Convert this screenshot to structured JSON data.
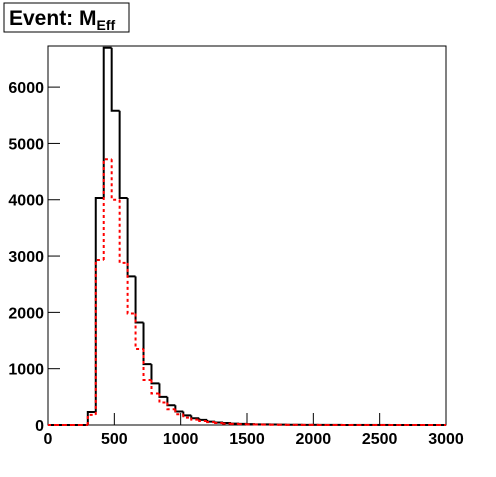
{
  "chart_data": {
    "type": "histogram",
    "title": "Event: M",
    "title_subscript": "Eff",
    "bins": [
      0,
      60,
      120,
      180,
      240,
      300,
      360,
      420,
      480,
      540,
      600,
      660,
      720,
      780,
      840,
      900,
      960,
      1020,
      1080,
      1140,
      1200,
      1260,
      1320,
      1380,
      1440,
      1500,
      1560,
      1620,
      1680,
      1740,
      1800,
      1860,
      1920,
      1980,
      2040,
      2100,
      2160,
      2220,
      2280,
      2340,
      2400,
      2460,
      2520,
      2580,
      2640,
      2700,
      2760,
      2820,
      2880,
      2940,
      3000
    ],
    "series": [
      {
        "color": "#000000",
        "dashed": false,
        "values": [
          0,
          0,
          0,
          0,
          0,
          230,
          4030,
          6700,
          5580,
          4030,
          2640,
          1820,
          1080,
          740,
          500,
          350,
          240,
          170,
          120,
          90,
          60,
          45,
          35,
          25,
          20,
          15,
          12,
          10,
          8,
          6,
          5,
          4,
          3,
          3,
          2,
          2,
          2,
          1,
          1,
          1,
          1,
          1,
          1,
          0,
          0,
          0,
          0,
          0,
          0,
          0
        ]
      },
      {
        "color": "#ff0000",
        "dashed": true,
        "values": [
          0,
          0,
          0,
          0,
          0,
          180,
          2930,
          4720,
          4000,
          2880,
          1980,
          1350,
          800,
          560,
          400,
          280,
          190,
          130,
          95,
          70,
          50,
          35,
          25,
          20,
          15,
          10,
          8,
          7,
          5,
          4,
          3,
          3,
          2,
          2,
          1,
          1,
          1,
          1,
          1,
          0,
          0,
          0,
          0,
          0,
          0,
          0,
          0,
          0,
          0,
          0
        ]
      }
    ],
    "xlim": [
      0,
      3000
    ],
    "xticks": [
      0,
      500,
      1000,
      1500,
      2000,
      2500,
      3000
    ],
    "ylim": [
      0,
      6730
    ],
    "yticks": [
      0,
      1000,
      2000,
      3000,
      4000,
      5000,
      6000
    ]
  }
}
